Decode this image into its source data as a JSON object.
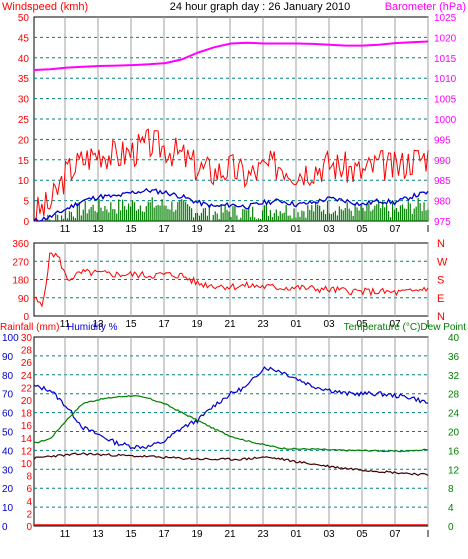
{
  "header": {
    "title": "24 hour graph day : 26 January 2010",
    "left_label": "Windspeed (kmh)",
    "right_label": "Barometer (hPa)"
  },
  "colors": {
    "windspeed": "#ff0000",
    "barometer": "#ff00ff",
    "gust": "#cc0000",
    "avg_wind": "#0000cc",
    "wind_green": "#008000",
    "direction": "#ff0000",
    "humidity": "#0000cc",
    "temperature": "#008000",
    "dewpoint": "#400000",
    "rainfall": "#ff0000",
    "grid_dashed": "#008080",
    "grid_solid": "#a0a0a0",
    "frame": "#000000"
  },
  "x_ticks": [
    "11",
    "13",
    "15",
    "17",
    "19",
    "21",
    "23",
    "01",
    "03",
    "05",
    "07",
    "I"
  ],
  "chart_data": [
    {
      "type": "line",
      "panel": "wind",
      "title": "24 hour graph day : 26 January 2010",
      "ylabel": "Windspeed (kmh)",
      "ylabel_right": "Barometer (hPa)",
      "ylim": [
        0,
        50
      ],
      "ylim_right": [
        975,
        1025
      ],
      "y_ticks": [
        0,
        5,
        10,
        15,
        20,
        25,
        30,
        35,
        40,
        45,
        50
      ],
      "y_ticks_right": [
        975,
        980,
        985,
        990,
        995,
        1000,
        1005,
        1010,
        1015,
        1020,
        1025
      ],
      "x": [
        0,
        1,
        2,
        3,
        4,
        5,
        6,
        7,
        8,
        9,
        10,
        11,
        12,
        13,
        14,
        15,
        16,
        17,
        18,
        19,
        20,
        21,
        22,
        23,
        24
      ],
      "series": [
        {
          "axis": "right",
          "values": [
            1012,
            1012.2,
            1012.6,
            1012.8,
            1013,
            1013.1,
            1013.2,
            1013.4,
            1013.7,
            1014.6,
            1016.3,
            1017.6,
            1018.5,
            1018.7,
            1018.5,
            1018.5,
            1018.5,
            1018.4,
            1018.2,
            1018,
            1018,
            1018.2,
            1018.6,
            1018.8,
            1019
          ]
        },
        {
          "axis": "left",
          "values": [
            2,
            4,
            12,
            15,
            17,
            16,
            17,
            19,
            18,
            16,
            13,
            12,
            13,
            11,
            13,
            14,
            12,
            13,
            14,
            13,
            12,
            14,
            13,
            15,
            16
          ]
        },
        {
          "axis": "left",
          "values": [
            0,
            1,
            3,
            5,
            6,
            6,
            7,
            7.5,
            7,
            6,
            4.5,
            3.5,
            4,
            3.5,
            4.5,
            5,
            4,
            4.5,
            5.5,
            5,
            4,
            5,
            4.5,
            6,
            7
          ]
        },
        {
          "axis": "left",
          "values": [
            0,
            0,
            2,
            3,
            3.5,
            3.5,
            4,
            4,
            4,
            3.5,
            2.5,
            2,
            2.5,
            2,
            2.5,
            3,
            2.5,
            3,
            3.5,
            3,
            2.5,
            3,
            2.5,
            3.5,
            4
          ]
        }
      ]
    },
    {
      "type": "line",
      "panel": "direction",
      "ylabel_right": "N W S E N",
      "ylim": [
        0,
        360
      ],
      "y_ticks": [
        0,
        90,
        180,
        270,
        360
      ],
      "right_labels": [
        "N",
        "W",
        "S",
        "E",
        "N"
      ],
      "x": [
        0,
        0.5,
        1,
        1.5,
        2,
        3,
        4,
        5,
        6,
        7,
        8,
        9,
        10,
        11,
        12,
        13,
        14,
        15,
        16,
        17,
        18,
        19,
        20,
        21,
        22,
        23,
        24
      ],
      "series": [
        {
          "values": [
            90,
            45,
            315,
            290,
            180,
            215,
            210,
            205,
            205,
            200,
            205,
            200,
            160,
            150,
            145,
            150,
            145,
            140,
            140,
            135,
            130,
            125,
            120,
            120,
            115,
            120,
            140
          ]
        }
      ]
    },
    {
      "type": "line",
      "panel": "humidity-temperature",
      "ylabel_left_1": "Rainfall (mm)",
      "ylabel_left_2": "Humidity %",
      "ylabel_right": "Temperature (°C)Dew Point",
      "ylim_humidity": [
        0,
        100
      ],
      "ylim_rainfall": [
        0,
        30
      ],
      "ylim_temperature": [
        0,
        40
      ],
      "y_ticks_humidity": [
        0,
        10,
        20,
        30,
        40,
        50,
        60,
        70,
        80,
        90,
        100
      ],
      "y_ticks_rainfall": [
        0,
        2,
        4,
        6,
        8,
        10,
        12,
        14,
        16,
        18,
        20,
        22,
        24,
        26,
        28,
        30
      ],
      "y_ticks_temperature": [
        0,
        4,
        8,
        12,
        16,
        20,
        24,
        28,
        32,
        36,
        40
      ],
      "x": [
        0,
        1,
        2,
        3,
        4,
        5,
        6,
        7,
        8,
        9,
        10,
        11,
        12,
        13,
        14,
        15,
        16,
        17,
        18,
        19,
        20,
        21,
        22,
        23,
        24
      ],
      "series": [
        {
          "axis": "humidity",
          "values": [
            74,
            72,
            63,
            52,
            48,
            44,
            42,
            42,
            45,
            52,
            56,
            64,
            70,
            74,
            84,
            82,
            78,
            74,
            72,
            70,
            70,
            70,
            69,
            68,
            65
          ]
        },
        {
          "axis": "temperature",
          "values": [
            17.5,
            18.5,
            22.5,
            26,
            26.8,
            27.3,
            27.6,
            27,
            25.8,
            24,
            22.3,
            20.5,
            19,
            18,
            17.2,
            16.5,
            16.3,
            16.3,
            16.1,
            16,
            16,
            15.9,
            15.8,
            15.9,
            16.2
          ]
        },
        {
          "axis": "temperature",
          "values": [
            14.3,
            14.8,
            15,
            15.3,
            15.1,
            15,
            14.8,
            14.7,
            14.5,
            14.3,
            14.2,
            14.1,
            14.1,
            14.2,
            14.6,
            14.2,
            13.6,
            13.1,
            12.6,
            12.2,
            11.9,
            11.6,
            11.3,
            11.1,
            10.8
          ]
        },
        {
          "axis": "rainfall",
          "values": [
            0,
            0,
            0,
            0,
            0,
            0,
            0,
            0,
            0,
            0,
            0,
            0,
            0,
            0,
            0,
            0,
            0,
            0,
            0,
            0,
            0,
            0,
            0,
            0,
            0
          ]
        }
      ]
    }
  ]
}
